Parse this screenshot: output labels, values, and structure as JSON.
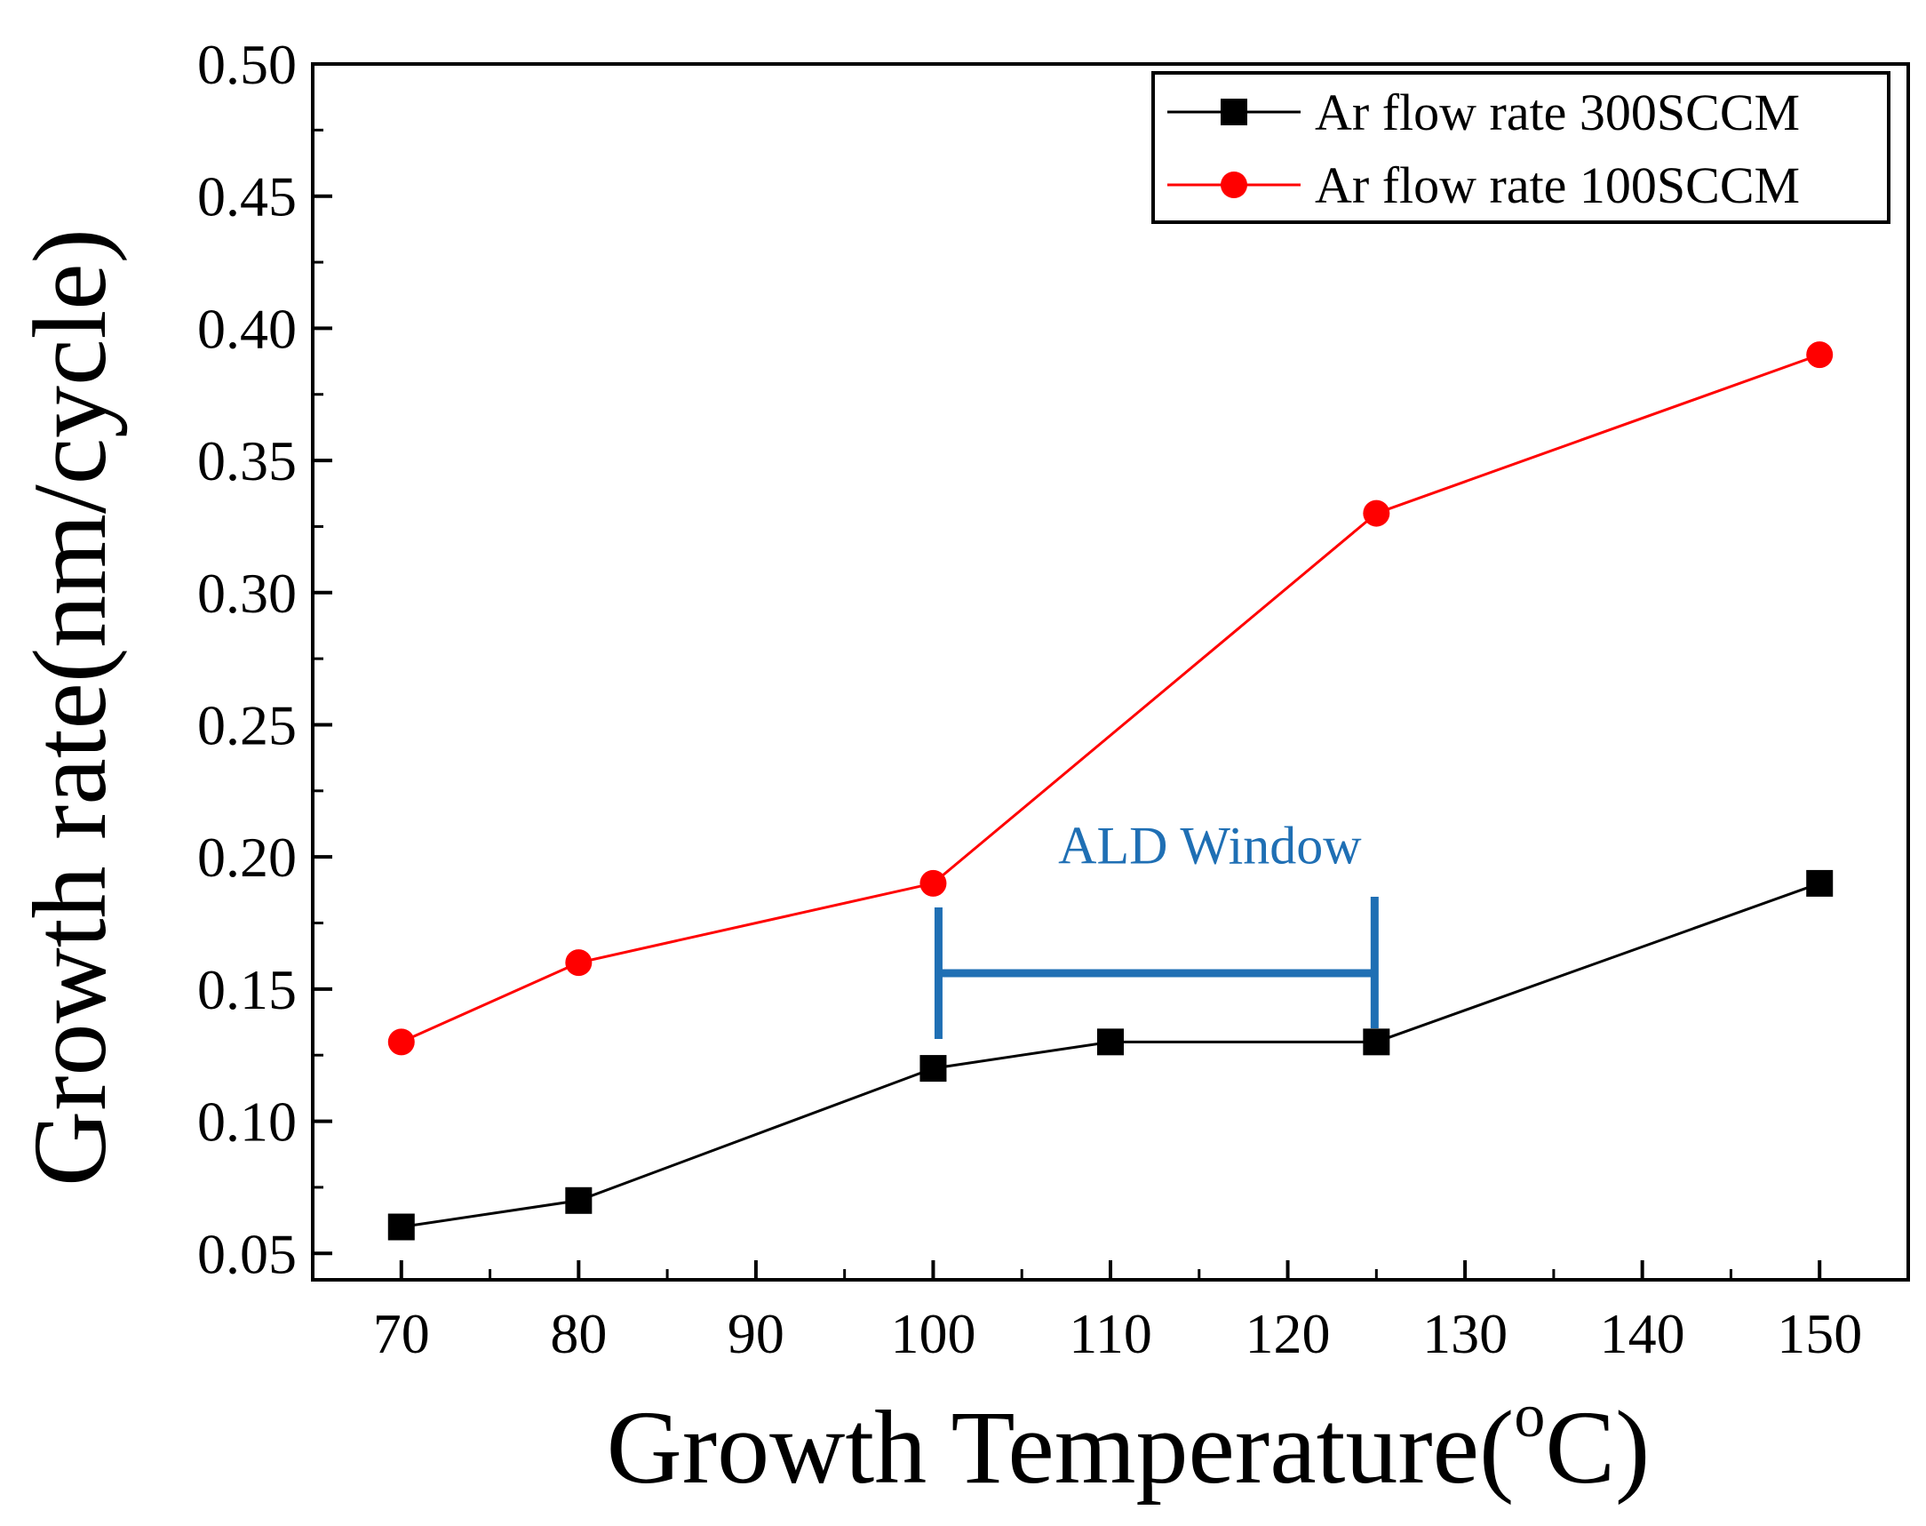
{
  "chart_data": {
    "type": "line",
    "xlabel": "Growth Temperature(",
    "xlabel_sup": "o",
    "xlabel_suffix": "C)",
    "ylabel": "Growth rate(nm/cycle)",
    "xlim": [
      65,
      155
    ],
    "ylim": [
      0.04,
      0.5
    ],
    "x_ticks": [
      70,
      80,
      90,
      100,
      110,
      120,
      130,
      140,
      150
    ],
    "x_tick_labels": [
      "70",
      "80",
      "90",
      "100",
      "110",
      "120",
      "130",
      "140",
      "150"
    ],
    "y_ticks": [
      0.05,
      0.1,
      0.15,
      0.2,
      0.25,
      0.3,
      0.35,
      0.4,
      0.45,
      0.5
    ],
    "y_tick_labels": [
      "0.05",
      "0.10",
      "0.15",
      "0.20",
      "0.25",
      "0.30",
      "0.35",
      "0.40",
      "0.45",
      "0.50"
    ],
    "legend_position": "top-right",
    "series": [
      {
        "name": "Ar flow rate 300SCCM",
        "color": "#000000",
        "marker": "square",
        "x": [
          70,
          80,
          100,
          110,
          125,
          150
        ],
        "y": [
          0.06,
          0.07,
          0.12,
          0.13,
          0.13,
          0.19
        ]
      },
      {
        "name": "Ar flow rate 100SCCM",
        "color": "#ff0000",
        "marker": "circle",
        "x": [
          70,
          80,
          100,
          125,
          150
        ],
        "y": [
          0.13,
          0.16,
          0.19,
          0.33,
          0.39
        ]
      }
    ],
    "annotation": {
      "text": "ALD Window",
      "color": "#1f6fb4",
      "x_start": 100,
      "x_end": 125,
      "y": 0.156,
      "y_label": 0.205
    }
  }
}
